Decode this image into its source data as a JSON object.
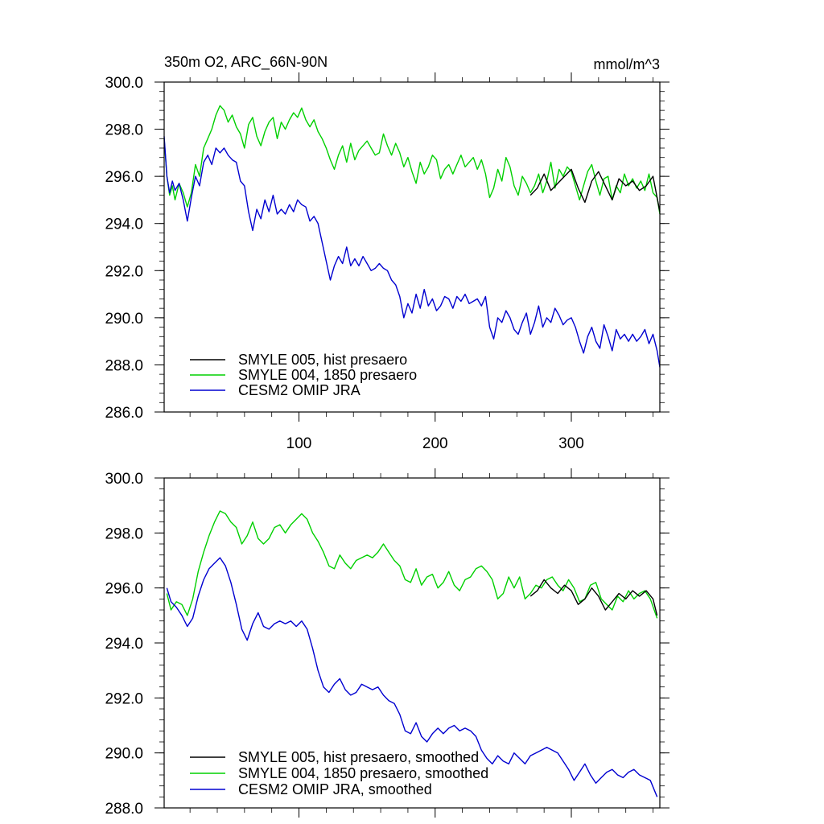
{
  "chart_data": [
    {
      "type": "line",
      "title": "350m O2, ARC_66N-90N",
      "units": "mmol/m^3",
      "xlim": [
        1,
        365
      ],
      "ylim": [
        286.0,
        300.0
      ],
      "x_ticks": [
        100,
        200,
        300
      ],
      "x_tick_labels": [
        "100",
        "200",
        "300"
      ],
      "y_ticks": [
        286.0,
        288.0,
        290.0,
        292.0,
        294.0,
        296.0,
        298.0,
        300.0
      ],
      "y_tick_labels": [
        "286.0",
        "288.0",
        "290.0",
        "292.0",
        "294.0",
        "296.0",
        "298.0",
        "300.0"
      ],
      "legend_position": "bottom-left",
      "series": [
        {
          "name": "SMYLE 005, hist presaero",
          "color": "#000000",
          "x": [
            270,
            275,
            280,
            285,
            290,
            295,
            300,
            305,
            310,
            315,
            320,
            325,
            330,
            335,
            340,
            345,
            350,
            355,
            360,
            365
          ],
          "values": [
            295.2,
            295.5,
            296.1,
            295.4,
            295.7,
            296.0,
            296.3,
            295.5,
            294.9,
            295.8,
            296.2,
            295.6,
            295.0,
            295.9,
            295.6,
            295.8,
            295.4,
            295.6,
            296.0,
            294.5
          ]
        },
        {
          "name": "SMYLE 004, 1850 presaero",
          "color": "#00d000",
          "x": [
            1,
            3,
            5,
            7,
            9,
            12,
            15,
            18,
            21,
            24,
            27,
            30,
            33,
            36,
            39,
            42,
            45,
            48,
            51,
            54,
            57,
            60,
            63,
            66,
            69,
            72,
            75,
            78,
            81,
            84,
            87,
            90,
            93,
            96,
            99,
            102,
            105,
            108,
            111,
            114,
            117,
            120,
            123,
            126,
            129,
            132,
            135,
            138,
            141,
            144,
            147,
            150,
            153,
            156,
            159,
            162,
            165,
            168,
            171,
            174,
            177,
            180,
            183,
            186,
            189,
            192,
            195,
            198,
            201,
            204,
            207,
            210,
            213,
            216,
            219,
            222,
            225,
            228,
            231,
            234,
            237,
            240,
            243,
            246,
            249,
            252,
            255,
            258,
            261,
            264,
            267,
            270,
            273,
            276,
            279,
            282,
            285,
            288,
            291,
            294,
            297,
            300,
            303,
            306,
            309,
            312,
            315,
            318,
            321,
            324,
            327,
            330,
            333,
            336,
            339,
            342,
            345,
            348,
            351,
            354,
            357,
            360,
            363,
            365
          ],
          "values": [
            297.6,
            296.0,
            295.2,
            295.6,
            295.0,
            295.7,
            295.3,
            294.7,
            295.3,
            296.5,
            296.0,
            297.2,
            297.6,
            298.0,
            298.6,
            299.0,
            298.8,
            298.3,
            298.6,
            298.1,
            297.8,
            297.2,
            298.2,
            298.5,
            297.7,
            297.3,
            297.9,
            298.3,
            298.5,
            297.6,
            298.3,
            298.0,
            298.4,
            298.7,
            298.5,
            298.9,
            298.4,
            298.1,
            298.4,
            297.9,
            297.6,
            297.2,
            296.7,
            296.3,
            296.9,
            297.3,
            296.6,
            297.4,
            296.7,
            297.1,
            297.3,
            297.5,
            297.2,
            296.9,
            297.0,
            297.8,
            297.3,
            296.9,
            297.4,
            297.0,
            296.4,
            296.8,
            296.2,
            295.7,
            296.6,
            296.1,
            296.4,
            296.9,
            296.7,
            295.9,
            296.3,
            296.5,
            296.1,
            296.5,
            296.9,
            296.4,
            296.6,
            296.8,
            296.3,
            296.7,
            296.1,
            295.1,
            295.5,
            296.3,
            295.8,
            296.8,
            296.4,
            295.6,
            295.2,
            296.0,
            295.7,
            295.3,
            295.6,
            296.1,
            295.3,
            295.8,
            296.6,
            295.5,
            296.3,
            296.0,
            296.4,
            296.2,
            295.6,
            295.0,
            295.6,
            296.2,
            296.5,
            295.8,
            295.2,
            295.9,
            296.0,
            295.0,
            295.6,
            295.3,
            296.1,
            295.6,
            295.9,
            295.5,
            295.8,
            295.4,
            296.1,
            295.3,
            295.1,
            294.4
          ]
        },
        {
          "name": "CESM2 OMIP JRA",
          "color": "#0000d0",
          "x": [
            1,
            3,
            5,
            7,
            9,
            12,
            15,
            18,
            21,
            24,
            27,
            30,
            33,
            36,
            39,
            42,
            45,
            48,
            51,
            54,
            57,
            60,
            63,
            66,
            69,
            72,
            75,
            78,
            81,
            84,
            87,
            90,
            93,
            96,
            99,
            102,
            105,
            108,
            111,
            114,
            117,
            120,
            123,
            126,
            129,
            132,
            135,
            138,
            141,
            144,
            147,
            150,
            153,
            156,
            159,
            162,
            165,
            168,
            171,
            174,
            177,
            180,
            183,
            186,
            189,
            192,
            195,
            198,
            201,
            204,
            207,
            210,
            213,
            216,
            219,
            222,
            225,
            228,
            231,
            234,
            237,
            240,
            243,
            246,
            249,
            252,
            255,
            258,
            261,
            264,
            267,
            270,
            273,
            276,
            279,
            282,
            285,
            288,
            291,
            294,
            297,
            300,
            303,
            306,
            309,
            312,
            315,
            318,
            321,
            324,
            327,
            330,
            333,
            336,
            339,
            342,
            345,
            348,
            351,
            354,
            357,
            360,
            363,
            365
          ],
          "values": [
            297.7,
            296.0,
            295.3,
            295.8,
            295.4,
            295.7,
            295.0,
            294.1,
            295.1,
            296.0,
            295.6,
            296.6,
            296.9,
            296.5,
            297.2,
            297.0,
            297.2,
            296.9,
            296.7,
            296.6,
            295.8,
            295.6,
            294.5,
            293.7,
            294.6,
            294.2,
            295.0,
            294.5,
            295.2,
            294.4,
            294.6,
            294.4,
            294.8,
            294.5,
            295.0,
            294.8,
            294.7,
            294.1,
            294.3,
            294.0,
            293.2,
            292.4,
            291.6,
            292.2,
            292.6,
            292.3,
            293.0,
            292.2,
            292.5,
            292.2,
            292.6,
            292.3,
            292.0,
            292.1,
            292.3,
            292.1,
            292.0,
            291.6,
            291.4,
            290.9,
            290.0,
            290.6,
            290.2,
            291.0,
            290.4,
            291.2,
            290.5,
            290.8,
            290.3,
            290.5,
            290.9,
            290.8,
            290.4,
            290.9,
            290.7,
            291.0,
            290.6,
            290.7,
            290.8,
            290.5,
            290.9,
            289.6,
            289.1,
            290.0,
            289.8,
            290.3,
            290.0,
            289.5,
            289.3,
            289.8,
            290.2,
            289.3,
            289.8,
            290.5,
            289.6,
            290.0,
            289.8,
            290.4,
            290.1,
            289.7,
            289.9,
            290.0,
            289.6,
            289.0,
            288.5,
            289.2,
            289.6,
            289.0,
            288.7,
            289.7,
            289.2,
            288.6,
            289.5,
            289.1,
            289.3,
            289.0,
            289.3,
            289.0,
            289.2,
            289.5,
            288.9,
            289.3,
            288.6,
            287.9
          ]
        }
      ]
    },
    {
      "type": "line",
      "title": "",
      "xlim": [
        1,
        365
      ],
      "ylim": [
        288.0,
        300.0
      ],
      "x_ticks": [
        100,
        200,
        300
      ],
      "x_tick_labels": [],
      "y_ticks": [
        288.0,
        290.0,
        292.0,
        294.0,
        296.0,
        298.0,
        300.0
      ],
      "y_tick_labels": [
        "288.0",
        "290.0",
        "292.0",
        "294.0",
        "296.0",
        "298.0",
        "300.0"
      ],
      "legend_position": "bottom-left",
      "series": [
        {
          "name": "SMYLE 005, hist presaero, smoothed",
          "color": "#000000",
          "x": [
            270,
            275,
            280,
            285,
            290,
            295,
            300,
            305,
            310,
            315,
            320,
            325,
            330,
            335,
            340,
            345,
            350,
            355,
            360,
            363
          ],
          "values": [
            295.7,
            295.9,
            296.3,
            296.0,
            295.8,
            296.1,
            295.9,
            295.4,
            295.6,
            296.0,
            295.7,
            295.2,
            295.5,
            295.8,
            295.6,
            295.9,
            295.7,
            295.9,
            295.6,
            295.0
          ]
        },
        {
          "name": "SMYLE 004, 1850 presaero, smoothed",
          "color": "#00d000",
          "x": [
            3,
            6,
            10,
            14,
            18,
            22,
            26,
            30,
            34,
            38,
            42,
            46,
            50,
            54,
            58,
            62,
            66,
            70,
            74,
            78,
            82,
            86,
            90,
            94,
            98,
            102,
            106,
            110,
            114,
            118,
            122,
            126,
            130,
            134,
            138,
            142,
            146,
            150,
            154,
            158,
            162,
            166,
            170,
            174,
            178,
            182,
            186,
            190,
            194,
            198,
            202,
            206,
            210,
            214,
            218,
            222,
            226,
            230,
            234,
            238,
            242,
            246,
            250,
            254,
            258,
            262,
            266,
            270,
            274,
            278,
            282,
            286,
            290,
            294,
            298,
            302,
            306,
            310,
            314,
            318,
            322,
            326,
            330,
            334,
            338,
            342,
            346,
            350,
            354,
            358,
            363
          ],
          "values": [
            295.8,
            295.2,
            295.5,
            295.4,
            295.0,
            295.6,
            296.6,
            297.3,
            297.9,
            298.4,
            298.8,
            298.7,
            298.4,
            298.2,
            297.6,
            297.9,
            298.4,
            297.8,
            297.6,
            297.8,
            298.2,
            298.3,
            298.0,
            298.3,
            298.5,
            298.7,
            298.5,
            298.0,
            297.7,
            297.3,
            296.8,
            296.7,
            297.2,
            296.9,
            296.7,
            297.0,
            297.1,
            297.2,
            297.1,
            297.3,
            297.6,
            297.3,
            297.0,
            296.8,
            296.3,
            296.2,
            296.7,
            296.1,
            296.4,
            296.5,
            296.0,
            296.2,
            296.6,
            296.1,
            295.9,
            296.3,
            296.4,
            296.7,
            296.8,
            296.6,
            296.3,
            295.6,
            295.8,
            296.4,
            296.0,
            296.4,
            295.6,
            295.8,
            296.1,
            296.0,
            296.3,
            296.4,
            296.1,
            295.9,
            296.3,
            296.0,
            295.5,
            295.6,
            296.1,
            296.2,
            295.6,
            295.4,
            295.2,
            295.7,
            295.5,
            295.9,
            295.6,
            295.8,
            295.9,
            295.6,
            294.9
          ]
        },
        {
          "name": "CESM2 OMIP JRA, smoothed",
          "color": "#0000d0",
          "x": [
            3,
            6,
            10,
            14,
            18,
            22,
            26,
            30,
            34,
            38,
            42,
            46,
            50,
            54,
            58,
            62,
            66,
            70,
            74,
            78,
            82,
            86,
            90,
            94,
            98,
            102,
            106,
            110,
            114,
            118,
            122,
            126,
            130,
            134,
            138,
            142,
            146,
            150,
            154,
            158,
            162,
            166,
            170,
            174,
            178,
            182,
            186,
            190,
            194,
            198,
            202,
            206,
            210,
            214,
            218,
            222,
            226,
            230,
            234,
            238,
            242,
            246,
            250,
            254,
            258,
            262,
            266,
            270,
            274,
            278,
            282,
            286,
            290,
            294,
            298,
            302,
            306,
            310,
            314,
            318,
            322,
            326,
            330,
            334,
            338,
            342,
            346,
            350,
            354,
            358,
            363
          ],
          "values": [
            296.0,
            295.5,
            295.3,
            295.0,
            294.6,
            294.9,
            295.7,
            296.3,
            296.7,
            296.9,
            297.1,
            296.8,
            296.2,
            295.4,
            294.5,
            294.1,
            294.7,
            295.1,
            294.6,
            294.5,
            294.7,
            294.8,
            294.7,
            294.8,
            294.6,
            294.8,
            294.5,
            293.8,
            293.0,
            292.4,
            292.2,
            292.5,
            292.7,
            292.3,
            292.1,
            292.2,
            292.5,
            292.4,
            292.3,
            292.4,
            292.1,
            291.9,
            291.8,
            291.4,
            290.8,
            290.7,
            291.1,
            290.6,
            290.4,
            290.7,
            290.9,
            290.7,
            290.9,
            291.0,
            290.8,
            290.9,
            290.8,
            290.6,
            290.1,
            289.8,
            289.6,
            289.9,
            289.7,
            289.6,
            290.0,
            289.8,
            289.6,
            289.9,
            290.0,
            290.1,
            290.2,
            290.1,
            290.0,
            289.7,
            289.4,
            289.0,
            289.3,
            289.6,
            289.2,
            288.9,
            289.1,
            289.3,
            289.4,
            289.2,
            289.1,
            289.3,
            289.4,
            289.2,
            289.1,
            289.0,
            288.4
          ]
        }
      ]
    }
  ]
}
